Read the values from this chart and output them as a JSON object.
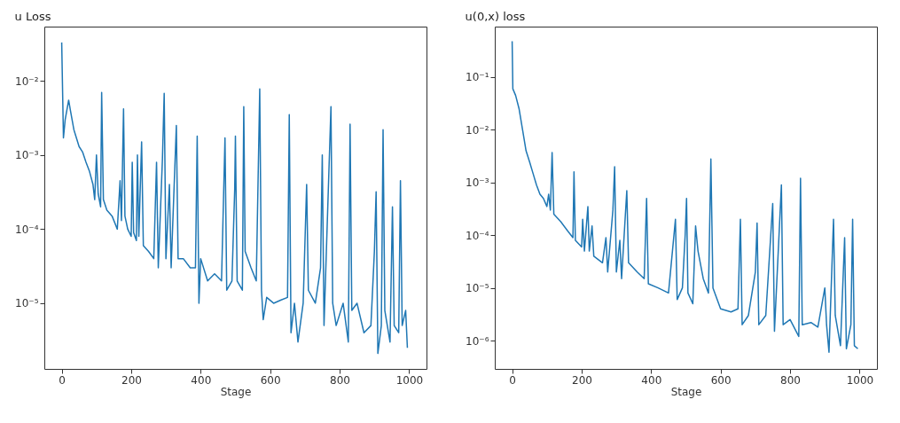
{
  "chart_data": [
    {
      "type": "line",
      "title": "u Loss",
      "xlabel": "Stage",
      "log": true,
      "grid": false,
      "line_style": "solid",
      "xlim": [
        -50,
        1050
      ],
      "xticks": [
        0,
        200,
        400,
        600,
        800,
        1000
      ],
      "ylim": [
        1.3e-06,
        0.054
      ],
      "yticks": [
        {
          "value": 0.01,
          "label": "10⁻²"
        },
        {
          "value": 0.001,
          "label": "10⁻³"
        },
        {
          "value": 0.0001,
          "label": "10⁻⁴"
        },
        {
          "value": 1e-05,
          "label": "10⁻⁵"
        }
      ],
      "series": [
        {
          "color": "#1f77b4",
          "x": [
            0,
            5,
            10,
            20,
            25,
            35,
            50,
            60,
            70,
            80,
            90,
            95,
            100,
            105,
            112,
            115,
            120,
            130,
            145,
            160,
            168,
            172,
            178,
            182,
            190,
            200,
            203,
            207,
            215,
            218,
            222,
            230,
            235,
            250,
            265,
            273,
            278,
            290,
            295,
            300,
            310,
            315,
            330,
            335,
            350,
            370,
            385,
            390,
            395,
            400,
            420,
            440,
            460,
            470,
            475,
            490,
            498,
            500,
            505,
            520,
            524,
            528,
            545,
            560,
            570,
            575,
            580,
            590,
            610,
            630,
            650,
            655,
            660,
            670,
            680,
            695,
            705,
            710,
            730,
            745,
            750,
            755,
            775,
            780,
            790,
            810,
            825,
            830,
            835,
            850,
            870,
            890,
            900,
            905,
            910,
            920,
            925,
            930,
            945,
            952,
            957,
            970,
            975,
            980,
            990,
            995
          ],
          "values": [
            0.033,
            0.0017,
            0.003,
            0.0055,
            0.004,
            0.0022,
            0.0013,
            0.0011,
            0.0008,
            0.0006,
            0.0004,
            0.00025,
            0.001,
            0.0003,
            0.0002,
            0.007,
            0.00025,
            0.00018,
            0.00015,
            0.0001,
            0.00045,
            0.00013,
            0.0042,
            0.00015,
            0.0001,
            8e-05,
            0.0008,
            9e-05,
            7e-05,
            0.001,
            8e-05,
            0.0015,
            6e-05,
            5e-05,
            4e-05,
            0.0008,
            3e-05,
            0.0009,
            0.0068,
            4e-05,
            0.0004,
            3e-05,
            0.0025,
            4e-05,
            4e-05,
            3e-05,
            3e-05,
            0.0018,
            1e-05,
            4e-05,
            2e-05,
            2.5e-05,
            2e-05,
            0.0017,
            1.5e-05,
            2e-05,
            0.00035,
            0.0018,
            2e-05,
            1.5e-05,
            0.0045,
            5e-05,
            3e-05,
            2e-05,
            0.0078,
            1.5e-05,
            6e-06,
            1.2e-05,
            1e-05,
            1.1e-05,
            1.2e-05,
            0.0035,
            4e-06,
            1e-05,
            3e-06,
            1e-05,
            0.0004,
            1.5e-05,
            1e-05,
            3e-05,
            0.001,
            5e-06,
            0.0045,
            1e-05,
            5e-06,
            1e-05,
            3e-06,
            0.0026,
            8e-06,
            1e-05,
            4e-06,
            5e-06,
            5e-05,
            0.00032,
            2.1e-06,
            5e-06,
            0.0022,
            8e-06,
            3e-06,
            0.0002,
            5e-06,
            4e-06,
            0.00045,
            5e-06,
            8e-06,
            2.5e-06
          ]
        }
      ]
    },
    {
      "type": "line",
      "title": "u(0,x) loss",
      "xlabel": "Stage",
      "log": true,
      "grid": false,
      "line_style": "solid",
      "xlim": [
        -50,
        1050
      ],
      "xticks": [
        0,
        200,
        400,
        600,
        800,
        1000
      ],
      "ylim": [
        2.9e-07,
        0.91
      ],
      "yticks": [
        {
          "value": 0.1,
          "label": "10⁻¹"
        },
        {
          "value": 0.01,
          "label": "10⁻²"
        },
        {
          "value": 0.001,
          "label": "10⁻³"
        },
        {
          "value": 0.0001,
          "label": "10⁻⁴"
        },
        {
          "value": 1e-05,
          "label": "10⁻⁵"
        },
        {
          "value": 1e-06,
          "label": "10⁻⁶"
        }
      ],
      "series": [
        {
          "color": "#1f77b4",
          "x": [
            0,
            2,
            10,
            20,
            30,
            40,
            50,
            60,
            70,
            80,
            90,
            100,
            105,
            110,
            115,
            120,
            140,
            160,
            175,
            178,
            182,
            200,
            203,
            208,
            218,
            222,
            230,
            235,
            260,
            270,
            275,
            290,
            295,
            300,
            310,
            315,
            330,
            335,
            360,
            380,
            387,
            392,
            420,
            450,
            470,
            475,
            490,
            498,
            502,
            506,
            520,
            528,
            535,
            550,
            565,
            572,
            578,
            600,
            630,
            650,
            657,
            662,
            680,
            700,
            705,
            710,
            730,
            750,
            755,
            775,
            780,
            800,
            825,
            830,
            835,
            860,
            880,
            900,
            905,
            912,
            925,
            930,
            945,
            957,
            962,
            975,
            980,
            985,
            995
          ],
          "values": [
            0.48,
            0.06,
            0.045,
            0.025,
            0.01,
            0.004,
            0.0025,
            0.0015,
            0.0009,
            0.0006,
            0.0005,
            0.00035,
            0.0006,
            0.0003,
            0.0037,
            0.00025,
            0.00018,
            0.00012,
            9e-05,
            0.0016,
            8e-05,
            6e-05,
            0.0002,
            5e-05,
            0.00035,
            5e-05,
            0.00015,
            4e-05,
            3e-05,
            9e-05,
            2e-05,
            0.0003,
            0.002,
            2e-05,
            8e-05,
            1.5e-05,
            0.0007,
            3e-05,
            2e-05,
            1.5e-05,
            0.0005,
            1.2e-05,
            1e-05,
            8e-06,
            0.0002,
            6e-06,
            1e-05,
            0.0001,
            0.0005,
            8e-06,
            5e-06,
            0.00015,
            5e-05,
            1.5e-05,
            8e-06,
            0.0028,
            1e-05,
            4e-06,
            3.5e-06,
            4e-06,
            0.0002,
            2e-06,
            3e-06,
            2e-05,
            0.00017,
            2e-06,
            3e-06,
            0.0004,
            1.5e-06,
            0.0009,
            2e-06,
            2.5e-06,
            1.2e-06,
            0.0012,
            2e-06,
            2.2e-06,
            1.8e-06,
            1e-05,
            2e-06,
            6e-07,
            0.0002,
            3e-06,
            8e-07,
            9e-05,
            7e-07,
            2e-06,
            0.0002,
            8e-07,
            7e-07
          ]
        }
      ]
    }
  ]
}
